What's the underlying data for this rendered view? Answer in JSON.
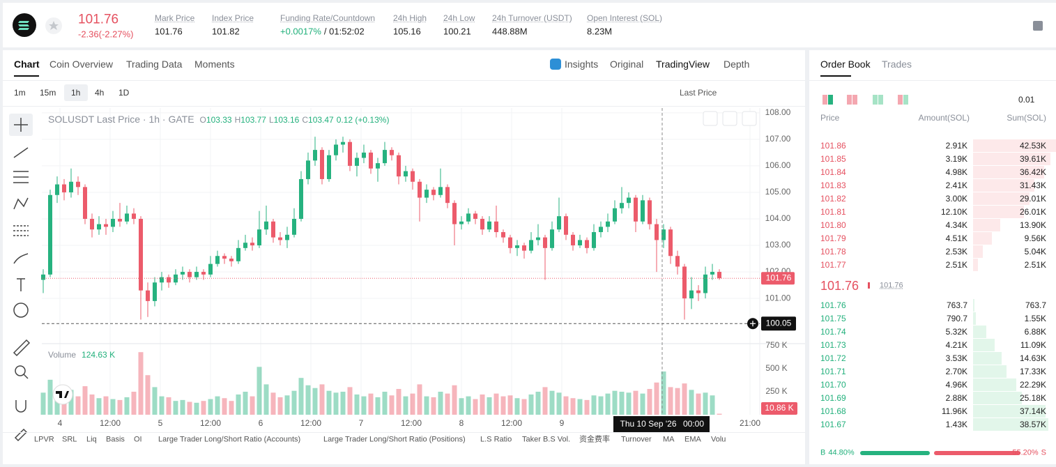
{
  "header": {
    "price": "101.76",
    "change": "-2.36(-2.27%)",
    "stats": [
      {
        "label": "Mark Price",
        "value": "101.76"
      },
      {
        "label": "Index Price",
        "value": "101.82"
      },
      {
        "label": "Funding Rate/Countdown",
        "value": "+0.0017%",
        "extra": "/ 01:52:02"
      },
      {
        "label": "24h High",
        "value": "105.16"
      },
      {
        "label": "24h Low",
        "value": "100.21"
      },
      {
        "label": "24h Turnover (USDT)",
        "value": "448.88M"
      },
      {
        "label": "Open Interest (SOL)",
        "value": "8.23M"
      }
    ]
  },
  "tabs": [
    "Chart",
    "Coin Overview",
    "Trading Data",
    "Moments"
  ],
  "views": [
    "Insights",
    "Original",
    "TradingView",
    "Depth"
  ],
  "intervals": [
    "1m",
    "15m",
    "1h",
    "4h",
    "1D"
  ],
  "price_type": "Last Price",
  "chart_data": {
    "type": "candlestick",
    "legend": {
      "title": "SOLUSDT Last Price · 1h · GATE",
      "ohlc": [
        {
          "label": "O",
          "value": "103.33"
        },
        {
          "label": "H",
          "value": "103.77"
        },
        {
          "label": "L",
          "value": "103.16"
        },
        {
          "label": "C",
          "value": "103.47"
        }
      ],
      "change": "0.12 (+0.13%)"
    },
    "volume_legend": {
      "label": "Volume",
      "value": "124.63 K"
    },
    "up_color": "#26b27f",
    "down_color": "#ec5b6b",
    "candles": [
      [
        101.7,
        102.1,
        101.2,
        101.9
      ],
      [
        101.9,
        105.1,
        101.8,
        104.9
      ],
      [
        104.9,
        105.6,
        104.6,
        105.3
      ],
      [
        105.3,
        105.5,
        104.7,
        105.0
      ],
      [
        105.0,
        105.9,
        104.8,
        105.4
      ],
      [
        105.4,
        105.6,
        104.9,
        105.2
      ],
      [
        105.2,
        105.3,
        103.8,
        104.0
      ],
      [
        104.0,
        104.2,
        103.3,
        103.6
      ],
      [
        103.6,
        104.1,
        103.4,
        103.8
      ],
      [
        103.8,
        104.0,
        103.4,
        103.7
      ],
      [
        103.7,
        104.3,
        103.5,
        104.0
      ],
      [
        104.0,
        104.6,
        103.7,
        103.9
      ],
      [
        103.9,
        104.5,
        103.8,
        104.2
      ],
      [
        104.2,
        104.4,
        103.8,
        104.0
      ],
      [
        104.0,
        104.1,
        100.2,
        101.3
      ],
      [
        101.3,
        101.6,
        100.3,
        100.9
      ],
      [
        100.9,
        101.8,
        100.7,
        101.6
      ],
      [
        101.6,
        102.0,
        101.3,
        101.8
      ],
      [
        101.8,
        101.9,
        101.4,
        101.6
      ],
      [
        101.6,
        102.1,
        101.5,
        101.9
      ],
      [
        101.9,
        102.2,
        101.7,
        102.0
      ],
      [
        102.0,
        102.1,
        101.6,
        101.8
      ],
      [
        101.8,
        102.2,
        101.7,
        102.0
      ],
      [
        102.0,
        102.1,
        101.7,
        101.9
      ],
      [
        101.9,
        102.6,
        101.8,
        102.3
      ],
      [
        102.3,
        102.8,
        102.2,
        102.6
      ],
      [
        102.6,
        102.7,
        102.3,
        102.5
      ],
      [
        102.5,
        102.6,
        102.2,
        102.4
      ],
      [
        102.4,
        103.2,
        102.3,
        102.9
      ],
      [
        102.9,
        103.4,
        102.8,
        103.1
      ],
      [
        103.1,
        103.3,
        102.8,
        103.0
      ],
      [
        103.0,
        104.3,
        102.9,
        103.6
      ],
      [
        103.6,
        104.5,
        103.4,
        103.9
      ],
      [
        103.9,
        104.0,
        103.1,
        103.3
      ],
      [
        103.3,
        103.5,
        103.0,
        103.2
      ],
      [
        103.2,
        103.7,
        102.9,
        103.4
      ],
      [
        103.4,
        104.4,
        103.3,
        104.0
      ],
      [
        104.0,
        105.8,
        103.9,
        105.5
      ],
      [
        105.5,
        106.5,
        105.3,
        106.2
      ],
      [
        106.2,
        107.1,
        106.0,
        106.6
      ],
      [
        106.6,
        106.7,
        105.3,
        105.5
      ],
      [
        105.5,
        106.6,
        105.4,
        106.4
      ],
      [
        106.4,
        107.0,
        106.2,
        106.8
      ],
      [
        106.8,
        107.1,
        106.5,
        106.9
      ],
      [
        106.9,
        107.0,
        105.8,
        106.0
      ],
      [
        106.0,
        106.5,
        105.6,
        106.3
      ],
      [
        106.3,
        106.8,
        106.1,
        106.5
      ],
      [
        106.5,
        106.6,
        105.7,
        105.9
      ],
      [
        105.9,
        106.3,
        105.4,
        106.1
      ],
      [
        106.1,
        106.9,
        106.0,
        106.6
      ],
      [
        106.6,
        106.7,
        106.2,
        106.4
      ],
      [
        106.4,
        106.5,
        105.3,
        105.6
      ],
      [
        105.6,
        106.0,
        105.4,
        105.8
      ],
      [
        105.8,
        105.9,
        105.1,
        105.4
      ],
      [
        105.4,
        105.5,
        103.9,
        104.8
      ],
      [
        104.8,
        105.3,
        104.6,
        105.1
      ],
      [
        105.1,
        105.2,
        104.7,
        104.9
      ],
      [
        104.9,
        105.9,
        104.8,
        105.2
      ],
      [
        105.2,
        105.3,
        104.4,
        104.6
      ],
      [
        104.6,
        104.7,
        103.0,
        103.8
      ],
      [
        103.8,
        104.1,
        103.6,
        103.9
      ],
      [
        103.9,
        104.4,
        103.8,
        104.2
      ],
      [
        104.2,
        104.3,
        103.8,
        104.0
      ],
      [
        104.0,
        104.1,
        103.4,
        103.6
      ],
      [
        103.6,
        104.1,
        103.5,
        103.9
      ],
      [
        103.9,
        104.5,
        103.3,
        103.5
      ],
      [
        103.5,
        103.6,
        103.1,
        103.3
      ],
      [
        103.3,
        103.4,
        102.7,
        102.9
      ],
      [
        102.9,
        103.2,
        102.6,
        103.0
      ],
      [
        103.0,
        103.1,
        102.5,
        102.8
      ],
      [
        102.8,
        103.5,
        102.7,
        103.2
      ],
      [
        103.2,
        103.8,
        103.0,
        103.3
      ],
      [
        103.3,
        103.4,
        101.7,
        102.9
      ],
      [
        102.9,
        103.9,
        102.8,
        103.6
      ],
      [
        103.6,
        104.8,
        103.5,
        104.1
      ],
      [
        104.1,
        104.2,
        103.2,
        103.4
      ],
      [
        103.4,
        103.5,
        102.8,
        103.0
      ],
      [
        103.0,
        103.4,
        102.9,
        103.2
      ],
      [
        103.2,
        103.3,
        102.7,
        102.9
      ],
      [
        102.9,
        103.8,
        102.8,
        103.5
      ],
      [
        103.5,
        103.9,
        103.3,
        103.7
      ],
      [
        103.7,
        104.2,
        103.5,
        103.9
      ],
      [
        103.9,
        104.7,
        103.8,
        104.4
      ],
      [
        104.4,
        105.2,
        104.2,
        104.6
      ],
      [
        104.6,
        105.0,
        104.4,
        104.8
      ],
      [
        104.8,
        104.9,
        103.5,
        103.9
      ],
      [
        103.9,
        104.9,
        103.8,
        104.7
      ],
      [
        104.7,
        104.8,
        103.6,
        103.8
      ],
      [
        103.8,
        104.0,
        102.0,
        103.2
      ],
      [
        103.2,
        103.8,
        102.9,
        103.6
      ],
      [
        103.6,
        103.7,
        102.3,
        102.6
      ],
      [
        102.6,
        102.8,
        101.9,
        102.2
      ],
      [
        102.2,
        102.3,
        100.2,
        101.0
      ],
      [
        101.0,
        101.8,
        100.6,
        101.3
      ],
      [
        101.3,
        101.5,
        100.9,
        101.2
      ],
      [
        101.2,
        102.2,
        101.0,
        101.9
      ],
      [
        101.9,
        102.3,
        101.7,
        102.0
      ],
      [
        102.0,
        102.1,
        101.7,
        101.76
      ]
    ],
    "volumes": [
      240,
      380,
      280,
      230,
      270,
      200,
      310,
      220,
      180,
      200,
      170,
      160,
      190,
      250,
      680,
      430,
      300,
      200,
      190,
      150,
      160,
      140,
      130,
      150,
      170,
      200,
      180,
      150,
      220,
      250,
      200,
      520,
      330,
      240,
      190,
      210,
      260,
      400,
      320,
      290,
      330,
      260,
      240,
      250,
      300,
      220,
      200,
      230,
      190,
      250,
      210,
      280,
      200,
      230,
      330,
      200,
      190,
      250,
      230,
      320,
      180,
      200,
      170,
      220,
      190,
      230,
      200,
      210,
      180,
      170,
      220,
      250,
      300,
      260,
      240,
      200,
      180,
      170,
      160,
      210,
      200,
      230,
      260,
      250,
      240,
      260,
      230,
      280,
      350,
      470,
      300,
      290,
      340,
      270,
      230,
      240,
      210,
      10.86
    ],
    "xlim": [
      -0.2,
      102.8
    ],
    "xticks": [
      {
        "value": 2.4,
        "label": "4"
      },
      {
        "value": 9.6,
        "label": "12:00"
      },
      {
        "value": 16.8,
        "label": "5"
      },
      {
        "value": 24,
        "label": "12:00"
      },
      {
        "value": 31.2,
        "label": "6"
      },
      {
        "value": 38.4,
        "label": "12:00"
      },
      {
        "value": 45.6,
        "label": "7"
      },
      {
        "value": 52.8,
        "label": "12:00"
      },
      {
        "value": 60,
        "label": "8"
      },
      {
        "value": 67.2,
        "label": "12:00"
      },
      {
        "value": 74.4,
        "label": "9"
      },
      {
        "value": 101.4,
        "label": "21:00"
      }
    ],
    "ylim": [
      99.32,
      108.18
    ],
    "yticks": [
      {
        "value": 101,
        "label": "101.00"
      },
      {
        "value": 102,
        "label": "102.00"
      },
      {
        "value": 103,
        "label": "103.00"
      },
      {
        "value": 104,
        "label": "104.00"
      },
      {
        "value": 105,
        "label": "105.00"
      },
      {
        "value": 106,
        "label": "106.00"
      },
      {
        "value": 107,
        "label": "107.00"
      },
      {
        "value": 108,
        "label": "108.00"
      }
    ],
    "vol_lim": [
      0,
      765
    ],
    "vol_ticks": [
      {
        "value": 250,
        "label": "250 K"
      },
      {
        "value": 500,
        "label": "500 K"
      },
      {
        "value": 750,
        "label": "750 K"
      }
    ],
    "last_price": 101.76,
    "low_line": 100.05,
    "current_volume": {
      "value": 10.86,
      "label": "10.86 K"
    },
    "crosshair": {
      "x": 88.8,
      "date": "Thu 10 Sep '26",
      "time": "00:00"
    },
    "grid": true
  },
  "indicators": [
    "LPVR",
    "SRL",
    "Liq",
    "Basis",
    "OI",
    "Large Trader Long/Short Ratio (Accounts)",
    "Large Trader Long/Short Ratio (Positions)",
    "L.S Ratio",
    "Taker B.S Vol.",
    "资金费率",
    "Turnover",
    "MA",
    "EMA",
    "Volu"
  ],
  "order_book": {
    "tabs": [
      "Order Book",
      "Trades"
    ],
    "precision": "0.01",
    "columns": [
      "Price",
      "Amount(SOL)",
      "Sum(SOL)"
    ],
    "asks": [
      {
        "price": "101.86",
        "amount": "2.91K",
        "sum": 42530,
        "sum_label": "42.53K"
      },
      {
        "price": "101.85",
        "amount": "3.19K",
        "sum": 39610,
        "sum_label": "39.61K"
      },
      {
        "price": "101.84",
        "amount": "4.98K",
        "sum": 36420,
        "sum_label": "36.42K"
      },
      {
        "price": "101.83",
        "amount": "2.41K",
        "sum": 31430,
        "sum_label": "31.43K"
      },
      {
        "price": "101.82",
        "amount": "3.00K",
        "sum": 29010,
        "sum_label": "29.01K"
      },
      {
        "price": "101.81",
        "amount": "12.10K",
        "sum": 26010,
        "sum_label": "26.01K"
      },
      {
        "price": "101.80",
        "amount": "4.34K",
        "sum": 13900,
        "sum_label": "13.90K"
      },
      {
        "price": "101.79",
        "amount": "4.51K",
        "sum": 9560,
        "sum_label": "9.56K"
      },
      {
        "price": "101.78",
        "amount": "2.53K",
        "sum": 5040,
        "sum_label": "5.04K"
      },
      {
        "price": "101.77",
        "amount": "2.51K",
        "sum": 2510,
        "sum_label": "2.51K"
      }
    ],
    "mid": {
      "price": "101.76",
      "mark": "101.76"
    },
    "bids": [
      {
        "price": "101.76",
        "amount": "763.7",
        "sum": 763.7,
        "sum_label": "763.7"
      },
      {
        "price": "101.75",
        "amount": "790.7",
        "sum": 1550,
        "sum_label": "1.55K"
      },
      {
        "price": "101.74",
        "amount": "5.32K",
        "sum": 6880,
        "sum_label": "6.88K"
      },
      {
        "price": "101.73",
        "amount": "4.21K",
        "sum": 11090,
        "sum_label": "11.09K"
      },
      {
        "price": "101.72",
        "amount": "3.53K",
        "sum": 14630,
        "sum_label": "14.63K"
      },
      {
        "price": "101.71",
        "amount": "2.70K",
        "sum": 17330,
        "sum_label": "17.33K"
      },
      {
        "price": "101.70",
        "amount": "4.96K",
        "sum": 22290,
        "sum_label": "22.29K"
      },
      {
        "price": "101.69",
        "amount": "2.88K",
        "sum": 25180,
        "sum_label": "25.18K"
      },
      {
        "price": "101.68",
        "amount": "11.96K",
        "sum": 37140,
        "sum_label": "37.14K"
      },
      {
        "price": "101.67",
        "amount": "1.43K",
        "sum": 38570,
        "sum_label": "38.57K"
      }
    ],
    "ratio": {
      "buy_letter": "B",
      "buy": 44.8,
      "buy_label": "44.80%",
      "sell": 55.2,
      "sell_label": "55.20%",
      "sell_letter": "S"
    }
  }
}
